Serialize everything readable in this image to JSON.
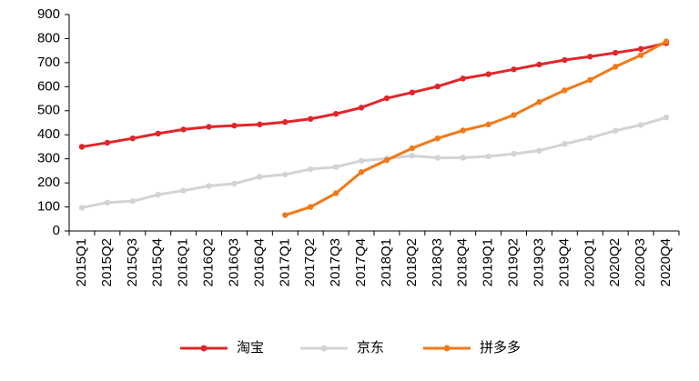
{
  "chart_data": {
    "type": "line",
    "categories": [
      "2015Q1",
      "2015Q2",
      "2015Q3",
      "2015Q4",
      "2016Q1",
      "2016Q2",
      "2016Q3",
      "2016Q4",
      "2017Q1",
      "2017Q2",
      "2017Q3",
      "2017Q4",
      "2018Q1",
      "2018Q2",
      "2018Q3",
      "2018Q4",
      "2019Q1",
      "2019Q2",
      "2019Q3",
      "2019Q4",
      "2020Q1",
      "2020Q2",
      "2020Q3",
      "2020Q4"
    ],
    "series": [
      {
        "name": "淘宝",
        "color": "#e0262a",
        "values": [
          350,
          367,
          385,
          405,
          422,
          433,
          438,
          443,
          453,
          466,
          487,
          513,
          552,
          576,
          601,
          634,
          652,
          672,
          692,
          711,
          725,
          741,
          757,
          781
        ]
      },
      {
        "name": "京东",
        "color": "#d3d3d3",
        "values": [
          97,
          118,
          124,
          151,
          168,
          187,
          197,
          225,
          235,
          257,
          266,
          292,
          301,
          313,
          304,
          305,
          310,
          321,
          334,
          362,
          387,
          417,
          441,
          472
        ]
      },
      {
        "name": "拼多多",
        "color": "#f07a1a",
        "values": [
          null,
          null,
          null,
          null,
          null,
          null,
          null,
          null,
          66,
          100,
          157,
          245,
          295,
          344,
          385,
          418,
          443,
          482,
          536,
          585,
          628,
          683,
          731,
          788
        ]
      }
    ],
    "ylim": [
      0,
      900
    ],
    "yticks": [
      0,
      100,
      200,
      300,
      400,
      500,
      600,
      700,
      800,
      900
    ],
    "grid": false,
    "legend": "bottom"
  }
}
